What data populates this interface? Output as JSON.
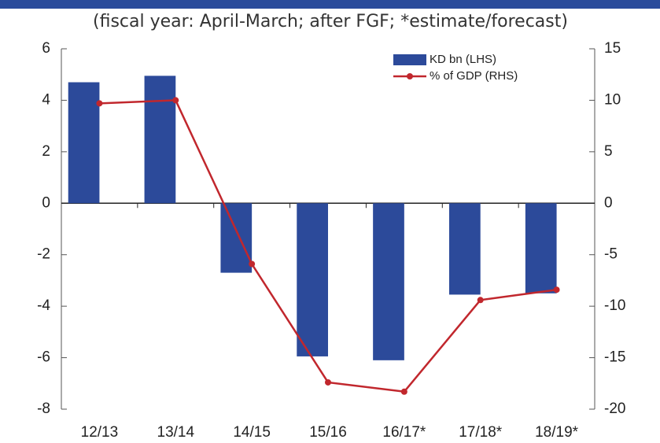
{
  "chart_data": {
    "type": "bar_line",
    "subtitle": "(fiscal year: April-March; after FGF; *estimate/forecast)",
    "categories": [
      "12/13",
      "13/14",
      "14/15",
      "15/16",
      "16/17*",
      "17/18*",
      "18/19*"
    ],
    "series": [
      {
        "name": "KD bn (LHS)",
        "type": "bar",
        "color": "#2c4a9a",
        "values": [
          4.7,
          4.95,
          -2.7,
          -5.95,
          -6.1,
          -3.55,
          -3.5
        ]
      },
      {
        "name": "% of GDP (RHS)",
        "type": "line",
        "axis": "y2",
        "color": "#c1272d",
        "values": [
          9.7,
          10.0,
          -5.9,
          -17.4,
          -18.3,
          -9.4,
          -8.4
        ]
      }
    ],
    "ylim": [
      -8,
      6
    ],
    "yticks": [
      -8,
      -6,
      -4,
      -2,
      0,
      2,
      4,
      6
    ],
    "y2lim": [
      -20,
      15
    ],
    "y2ticks": [
      -20,
      -15,
      -10,
      -5,
      0,
      5,
      10,
      15
    ],
    "legend": "upper right"
  }
}
